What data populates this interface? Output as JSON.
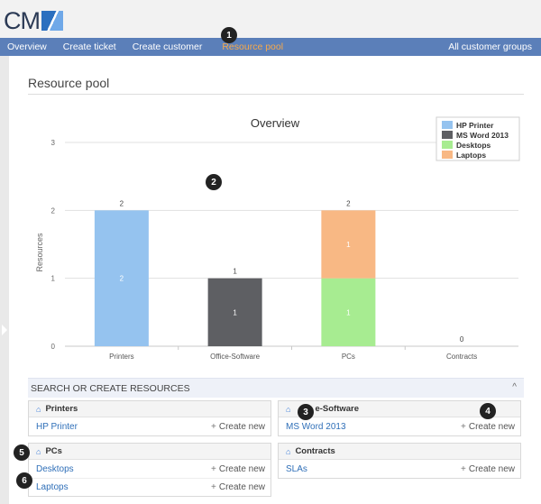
{
  "header": {
    "logo_text": "CM"
  },
  "nav": {
    "items": [
      {
        "label": "Overview"
      },
      {
        "label": "Create ticket"
      },
      {
        "label": "Create customer"
      },
      {
        "label": "Resource pool"
      }
    ],
    "right_label": "All customer groups",
    "active_color": "#f7a94a",
    "bar_color": "#5b7fb9"
  },
  "badges": [
    "1",
    "2",
    "3",
    "4",
    "5",
    "6"
  ],
  "page": {
    "title": "Resource pool"
  },
  "chart_data": {
    "type": "bar",
    "stacked": true,
    "title": "Overview",
    "ylabel": "Resources",
    "xlabel": "",
    "ylim": [
      0,
      3
    ],
    "yticks": [
      "0",
      "1",
      "2",
      "3"
    ],
    "categories": [
      "Printers",
      "Office-Software",
      "PCs",
      "Contracts"
    ],
    "series": [
      {
        "name": "HP Printer",
        "color": "#95c3ef",
        "values": [
          2,
          0,
          0,
          0
        ]
      },
      {
        "name": "MS Word 2013",
        "color": "#5e5f63",
        "values": [
          0,
          1,
          0,
          0
        ]
      },
      {
        "name": "Desktops",
        "color": "#a7ec91",
        "values": [
          0,
          0,
          1,
          0
        ]
      },
      {
        "name": "Laptops",
        "color": "#f8b884",
        "values": [
          0,
          0,
          1,
          0
        ]
      }
    ],
    "totals": [
      "2",
      "1",
      "2",
      "0"
    ],
    "legend_position": "top-right",
    "grid": true
  },
  "section": {
    "title": "SEARCH OR CREATE RESOURCES",
    "toggle": "^"
  },
  "panels": {
    "printers": {
      "title": "Printers",
      "items": [
        {
          "label": "HP Printer",
          "action": "Create new"
        }
      ]
    },
    "office": {
      "title": "e-Software",
      "items": [
        {
          "label": "MS Word 2013",
          "action": "Create new"
        }
      ]
    },
    "pcs": {
      "title": "PCs",
      "items": [
        {
          "label": "Desktops",
          "action": "Create new"
        },
        {
          "label": "Laptops",
          "action": "Create new"
        }
      ]
    },
    "contracts": {
      "title": "Contracts",
      "items": [
        {
          "label": "SLAs",
          "action": "Create new"
        }
      ]
    }
  }
}
